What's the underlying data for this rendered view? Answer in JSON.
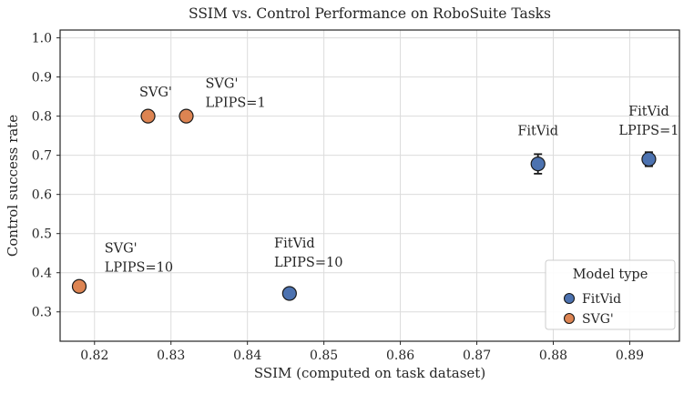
{
  "chart_data": {
    "type": "scatter",
    "title": "SSIM vs. Control Performance on RoboSuite Tasks",
    "xlabel": "SSIM (computed on task dataset)",
    "ylabel": "Control success rate",
    "xlim": [
      0.8155,
      0.8965
    ],
    "ylim": [
      0.225,
      1.02
    ],
    "xticks": [
      "0.82",
      "0.83",
      "0.84",
      "0.85",
      "0.86",
      "0.87",
      "0.88",
      "0.89"
    ],
    "yticks": [
      "0.3",
      "0.4",
      "0.5",
      "0.6",
      "0.7",
      "0.8",
      "0.9",
      "1.0"
    ],
    "grid": true,
    "colors": {
      "background": "#ffffff",
      "grid": "#dcdcdc",
      "spine": "#262626",
      "text": "#262626",
      "errorbar": "#1a1a1a",
      "marker_edge": "#1a1a1a",
      "legend_border": "#cccccc"
    },
    "series": [
      {
        "name": "FitVid",
        "color": "#4C72B0",
        "points": [
          {
            "x": 0.8455,
            "y": 0.347,
            "yerr": 0.01
          },
          {
            "x": 0.878,
            "y": 0.678,
            "yerr": 0.025
          },
          {
            "x": 0.8925,
            "y": 0.69,
            "yerr": 0.018
          }
        ]
      },
      {
        "name": "SVG'",
        "color": "#DD8452",
        "points": [
          {
            "x": 0.818,
            "y": 0.365,
            "yerr": 0
          },
          {
            "x": 0.827,
            "y": 0.8,
            "yerr": 0
          },
          {
            "x": 0.832,
            "y": 0.8,
            "yerr": 0
          }
        ]
      }
    ],
    "annotations": [
      {
        "x": 0.828,
        "y": 0.85,
        "anchor": "middle",
        "lines": [
          "SVG'"
        ]
      },
      {
        "x": 0.8345,
        "y": 0.872,
        "anchor": "start",
        "lines": [
          "SVG'",
          "LPIPS=1"
        ]
      },
      {
        "x": 0.8213,
        "y": 0.452,
        "anchor": "start",
        "lines": [
          "SVG'",
          "LPIPS=10"
        ]
      },
      {
        "x": 0.8435,
        "y": 0.465,
        "anchor": "start",
        "lines": [
          "FitVid",
          "LPIPS=10"
        ]
      },
      {
        "x": 0.878,
        "y": 0.752,
        "anchor": "middle",
        "lines": [
          "FitVid"
        ]
      },
      {
        "x": 0.8925,
        "y": 0.802,
        "anchor": "middle",
        "lines": [
          "FitVid",
          "LPIPS=1"
        ]
      }
    ],
    "legend": {
      "title": "Model type",
      "position": "lower right",
      "entries": [
        {
          "label": "FitVid",
          "color": "#4C72B0"
        },
        {
          "label": "SVG'",
          "color": "#DD8452"
        }
      ]
    }
  }
}
